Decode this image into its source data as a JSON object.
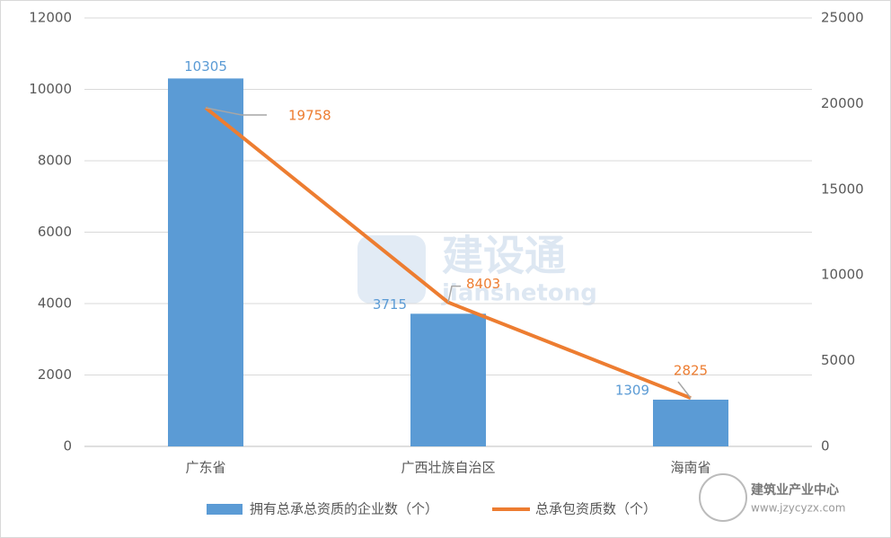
{
  "chart_data": {
    "type": "bar",
    "categories": [
      "广东省",
      "广西壮族自治区",
      "海南省"
    ],
    "series": [
      {
        "name": "拥有总承总资质的企业数（个）",
        "type": "bar",
        "color": "#5b9bd5",
        "label_color": "#5b9bd5",
        "values": [
          10305,
          3715,
          1309
        ]
      },
      {
        "name": "总承包资质数（个）",
        "type": "line",
        "axis": "y2",
        "color": "#ed7d31",
        "label_color": "#ed7d31",
        "values": [
          19758,
          8403,
          2825
        ]
      }
    ],
    "ylim": [
      0,
      12000
    ],
    "yticks": [
      0,
      2000,
      4000,
      6000,
      8000,
      10000,
      12000
    ],
    "y2lim": [
      0,
      25000
    ],
    "y2ticks": [
      0,
      5000,
      10000,
      15000,
      20000,
      25000
    ],
    "grid": true,
    "legend": "bottom",
    "watermarks": [
      "建设通",
      "jianshetong",
      "建筑业产业中心",
      "www.jzycyzx.com"
    ]
  }
}
